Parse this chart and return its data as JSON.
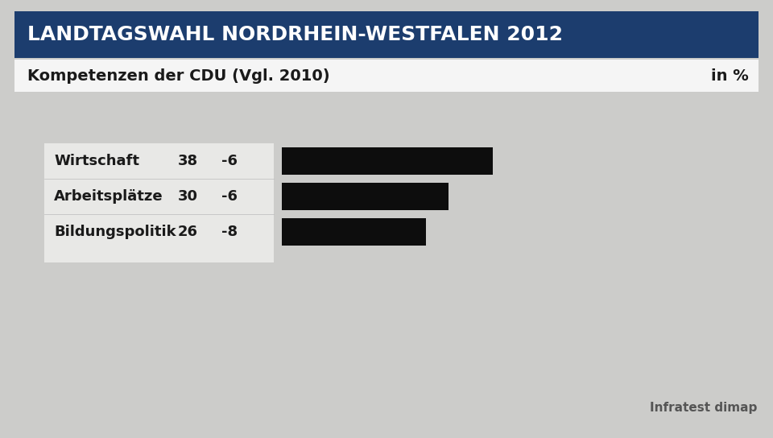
{
  "title_main": "LANDTAGSWAHL NORDRHEIN-WESTFALEN 2012",
  "title_sub": "Kompetenzen der CDU (Vgl. 2010)",
  "title_unit": "in %",
  "source": "Infratest dimap",
  "categories": [
    "Wirtschaft",
    "Arbeitsplätze",
    "Bildungspolitik"
  ],
  "values": [
    38,
    30,
    26
  ],
  "changes": [
    "-6",
    "-6",
    "-8"
  ],
  "bar_color": "#0d0d0d",
  "background_color": "#ccccca",
  "header_bg_color": "#1c3d6e",
  "header_text_color": "#ffffff",
  "subheader_bg_color": "#f5f5f5",
  "subheader_text_color": "#1a1a1a",
  "label_bg_color": "#e8e8e6",
  "label_text_color": "#1a1a1a",
  "fig_width": 9.6,
  "fig_height": 5.44,
  "dpi": 100
}
